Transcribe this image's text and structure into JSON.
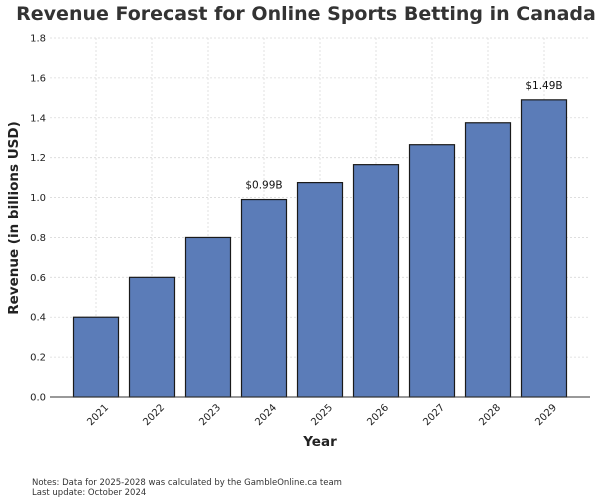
{
  "chart_data": {
    "type": "bar",
    "title": "Revenue Forecast for Online Sports Betting in Canada",
    "xlabel": "Year",
    "ylabel": "Revenue (in billions USD)",
    "categories": [
      "2021",
      "2022",
      "2023",
      "2024",
      "2025",
      "2026",
      "2027",
      "2028",
      "2029"
    ],
    "values": [
      0.4,
      0.6,
      0.8,
      0.99,
      1.075,
      1.165,
      1.265,
      1.375,
      1.49
    ],
    "ylim": [
      0,
      1.8
    ],
    "yticks": [
      "0.0",
      "0.2",
      "0.4",
      "0.6",
      "0.8",
      "1.0",
      "1.2",
      "1.4",
      "1.6",
      "1.8"
    ],
    "data_labels": [
      {
        "category": "2024",
        "text": "$0.99B"
      },
      {
        "category": "2029",
        "text": "$1.49B"
      }
    ],
    "grid": true,
    "bar_color": "#5b7cb8",
    "bar_edge_color": "#1a1a1a",
    "notes": [
      "Notes: Data for 2025-2028 was calculated by the GambleOnline.ca team",
      "Last update: October 2024"
    ]
  }
}
